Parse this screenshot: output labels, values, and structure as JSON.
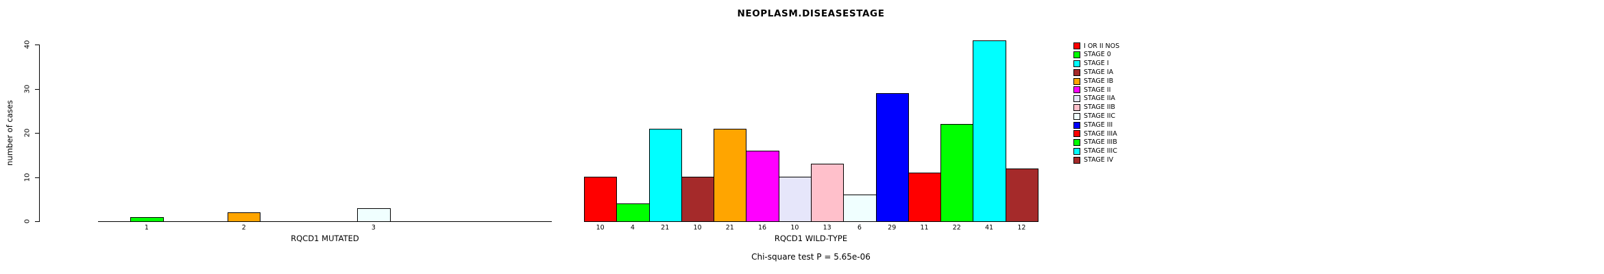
{
  "chart_data": {
    "type": "bar",
    "title": "NEOPLASM.DISEASESTAGE",
    "ylabel": "number of cases",
    "ylim": [
      0,
      40
    ],
    "yticks": [
      0,
      10,
      20,
      30,
      40
    ],
    "grid": false,
    "legend_position": "right",
    "categories": [
      "I OR II NOS",
      "STAGE 0",
      "STAGE I",
      "STAGE IA",
      "STAGE IB",
      "STAGE II",
      "STAGE IIA",
      "STAGE IIB",
      "STAGE IIC",
      "STAGE III",
      "STAGE IIIA",
      "STAGE IIIB",
      "STAGE IIIC",
      "STAGE IV"
    ],
    "palette": [
      "#FF0000",
      "#00FF00",
      "#00FFFF",
      "#A52A2A",
      "#FFA500",
      "#FF00FF",
      "#E6E6FA",
      "#FFC0CB",
      "#F0FFFF",
      "#0000FF",
      "#FF0000",
      "#00FF00",
      "#00FFFF",
      "#A52A2A"
    ],
    "series": [
      {
        "name": "RQCD1 MUTATED",
        "values": [
          0,
          1,
          0,
          0,
          2,
          0,
          0,
          0,
          3,
          0,
          0,
          0,
          0,
          0
        ]
      },
      {
        "name": "RQCD1 WILD-TYPE",
        "values": [
          10,
          4,
          21,
          10,
          21,
          16,
          10,
          13,
          6,
          29,
          11,
          22,
          41,
          12
        ]
      }
    ],
    "bar_count_labels_shown_for_zero": false,
    "footer": "Chi-square test P = 5.65e-06"
  }
}
